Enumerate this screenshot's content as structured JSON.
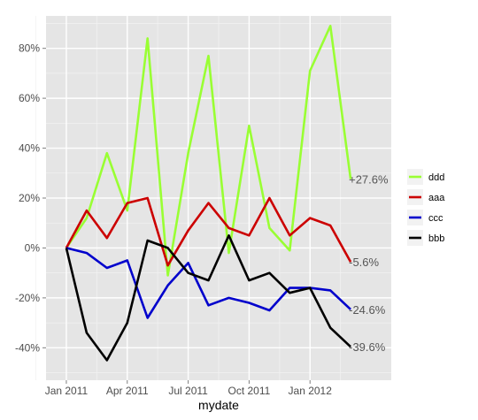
{
  "chart_data": {
    "type": "line",
    "xlabel": "mydate",
    "ylabel": "",
    "ylim": [
      -0.53,
      0.93
    ],
    "x_ticks": [
      {
        "label": "Jan 2011",
        "month": 0
      },
      {
        "label": "Apr 2011",
        "month": 3
      },
      {
        "label": "Jul 2011",
        "month": 6
      },
      {
        "label": "Oct 2011",
        "month": 9
      },
      {
        "label": "Jan 2012",
        "month": 12
      }
    ],
    "y_ticks": [
      {
        "label": "-40%",
        "value": -0.4
      },
      {
        "label": "-20%",
        "value": -0.2
      },
      {
        "label": "0%",
        "value": 0.0
      },
      {
        "label": "20%",
        "value": 0.2
      },
      {
        "label": "40%",
        "value": 0.4
      },
      {
        "label": "60%",
        "value": 0.6
      },
      {
        "label": "80%",
        "value": 0.8
      }
    ],
    "x": [
      "2011-01",
      "2011-02",
      "2011-03",
      "2011-04",
      "2011-05",
      "2011-06",
      "2011-07",
      "2011-08",
      "2011-09",
      "2011-10",
      "2011-11",
      "2011-12",
      "2012-01",
      "2012-02",
      "2012-03"
    ],
    "series": [
      {
        "name": "ddd",
        "color": "#99ff33",
        "values": [
          0.0,
          0.12,
          0.38,
          0.15,
          0.84,
          -0.11,
          0.38,
          0.77,
          -0.02,
          0.49,
          0.08,
          -0.01,
          0.71,
          0.89,
          0.276
        ],
        "end_label": "+27.6%"
      },
      {
        "name": "aaa",
        "color": "#cc0000",
        "values": [
          0.0,
          0.15,
          0.04,
          0.18,
          0.2,
          -0.07,
          0.07,
          0.18,
          0.08,
          0.05,
          0.2,
          0.05,
          0.12,
          0.09,
          -0.056
        ],
        "end_label": "-5.6%"
      },
      {
        "name": "ccc",
        "color": "#0000cc",
        "values": [
          0.0,
          -0.02,
          -0.08,
          -0.05,
          -0.28,
          -0.15,
          -0.06,
          -0.23,
          -0.2,
          -0.22,
          -0.25,
          -0.16,
          -0.16,
          -0.17,
          -0.246
        ],
        "end_label": "-24.6%"
      },
      {
        "name": "bbb",
        "color": "#000000",
        "values": [
          0.0,
          -0.34,
          -0.45,
          -0.3,
          0.03,
          0.0,
          -0.1,
          -0.13,
          0.05,
          -0.13,
          -0.1,
          -0.18,
          -0.16,
          -0.32,
          -0.396
        ],
        "end_label": "-39.6%"
      }
    ],
    "legend": {
      "placement": "right",
      "order": [
        "ddd",
        "aaa",
        "ccc",
        "bbb"
      ]
    },
    "grid": true,
    "panel_background": "#e5e5e5"
  }
}
